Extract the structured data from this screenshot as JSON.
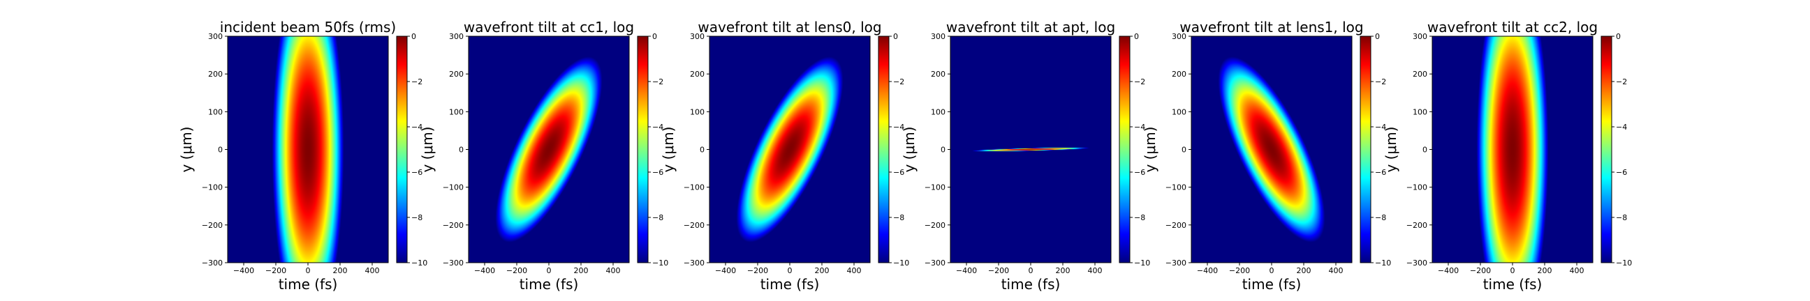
{
  "chart_data": [
    {
      "type": "heatmap",
      "title": "incident beam 50fs (rms)",
      "xlabel": "time (fs)",
      "ylabel": "y (μm)",
      "xlim": [
        -500,
        500
      ],
      "ylim": [
        -300,
        300
      ],
      "xticks": [
        -400,
        -200,
        0,
        200,
        400
      ],
      "yticks": [
        300,
        200,
        100,
        0,
        -100,
        -200,
        -300
      ],
      "colorbar": {
        "range": [
          -10,
          0
        ],
        "ticks": [
          0,
          -2,
          -4,
          -6,
          -8,
          -10
        ],
        "colormap": "jet"
      },
      "field": {
        "sigma_t_fs": 50,
        "sigma_y_um": 110,
        "tilt_fs_per_um": 0
      }
    },
    {
      "type": "heatmap",
      "title": "wavefront tilt at cc1, log",
      "xlabel": "time (fs)",
      "ylabel": "y (μm)",
      "xlim": [
        -500,
        500
      ],
      "ylim": [
        -300,
        300
      ],
      "xticks": [
        -400,
        -200,
        0,
        200,
        400
      ],
      "yticks": [
        300,
        200,
        100,
        0,
        -100,
        -200,
        -300
      ],
      "colorbar": {
        "range": [
          -10,
          0
        ],
        "ticks": [
          0,
          -2,
          -4,
          -6,
          -8,
          -10
        ],
        "colormap": "jet"
      },
      "field": {
        "sigma_t_fs": 50,
        "sigma_y_um": 55,
        "tilt_fs_per_um": 1.0
      }
    },
    {
      "type": "heatmap",
      "title": "wavefront tilt at lens0, log",
      "xlabel": "time (fs)",
      "ylabel": "y (μm)",
      "xlim": [
        -500,
        500
      ],
      "ylim": [
        -300,
        300
      ],
      "xticks": [
        -400,
        -200,
        0,
        200,
        400
      ],
      "yticks": [
        300,
        200,
        100,
        0,
        -100,
        -200,
        -300
      ],
      "colorbar": {
        "range": [
          -10,
          0
        ],
        "ticks": [
          0,
          -2,
          -4,
          -6,
          -8,
          -10
        ],
        "colormap": "jet"
      },
      "field": {
        "sigma_t_fs": 50,
        "sigma_y_um": 55,
        "tilt_fs_per_um": 1.0
      }
    },
    {
      "type": "heatmap",
      "title": "wavefront tilt at apt, log",
      "xlabel": "time (fs)",
      "ylabel": "y (μm)",
      "xlim": [
        -500,
        500
      ],
      "ylim": [
        -300,
        300
      ],
      "xticks": [
        -400,
        -200,
        0,
        200,
        400
      ],
      "yticks": [
        300,
        200,
        100,
        0,
        -100,
        -200,
        -300
      ],
      "colorbar": {
        "range": [
          -10,
          0
        ],
        "ticks": [
          0,
          -2,
          -4,
          -6,
          -8,
          -10
        ],
        "colormap": "jet"
      },
      "field": {
        "sigma_t_fs": 55,
        "sigma_y_um": 1.2,
        "tilt_fs_per_um": 50
      }
    },
    {
      "type": "heatmap",
      "title": "wavefront tilt at lens1, log",
      "xlabel": "time (fs)",
      "ylabel": "y (μm)",
      "xlim": [
        -500,
        500
      ],
      "ylim": [
        -300,
        300
      ],
      "xticks": [
        -400,
        -200,
        0,
        200,
        400
      ],
      "yticks": [
        300,
        200,
        100,
        0,
        -100,
        -200,
        -300
      ],
      "colorbar": {
        "range": [
          -10,
          0
        ],
        "ticks": [
          0,
          -2,
          -4,
          -6,
          -8,
          -10
        ],
        "colormap": "jet"
      },
      "field": {
        "sigma_t_fs": 50,
        "sigma_y_um": 55,
        "tilt_fs_per_um": -1.0
      }
    },
    {
      "type": "heatmap",
      "title": "wavefront tilt at cc2, log",
      "xlabel": "time (fs)",
      "ylabel": "y (μm)",
      "xlim": [
        -500,
        500
      ],
      "ylim": [
        -300,
        300
      ],
      "xticks": [
        -400,
        -200,
        0,
        200,
        400
      ],
      "yticks": [
        300,
        200,
        100,
        0,
        -100,
        -200,
        -300
      ],
      "colorbar": {
        "range": [
          -10,
          0
        ],
        "ticks": [
          0,
          -2,
          -4,
          -6,
          -8,
          -10
        ],
        "colormap": "jet"
      },
      "field": {
        "sigma_t_fs": 50,
        "sigma_y_um": 110,
        "tilt_fs_per_um": 0
      }
    }
  ]
}
